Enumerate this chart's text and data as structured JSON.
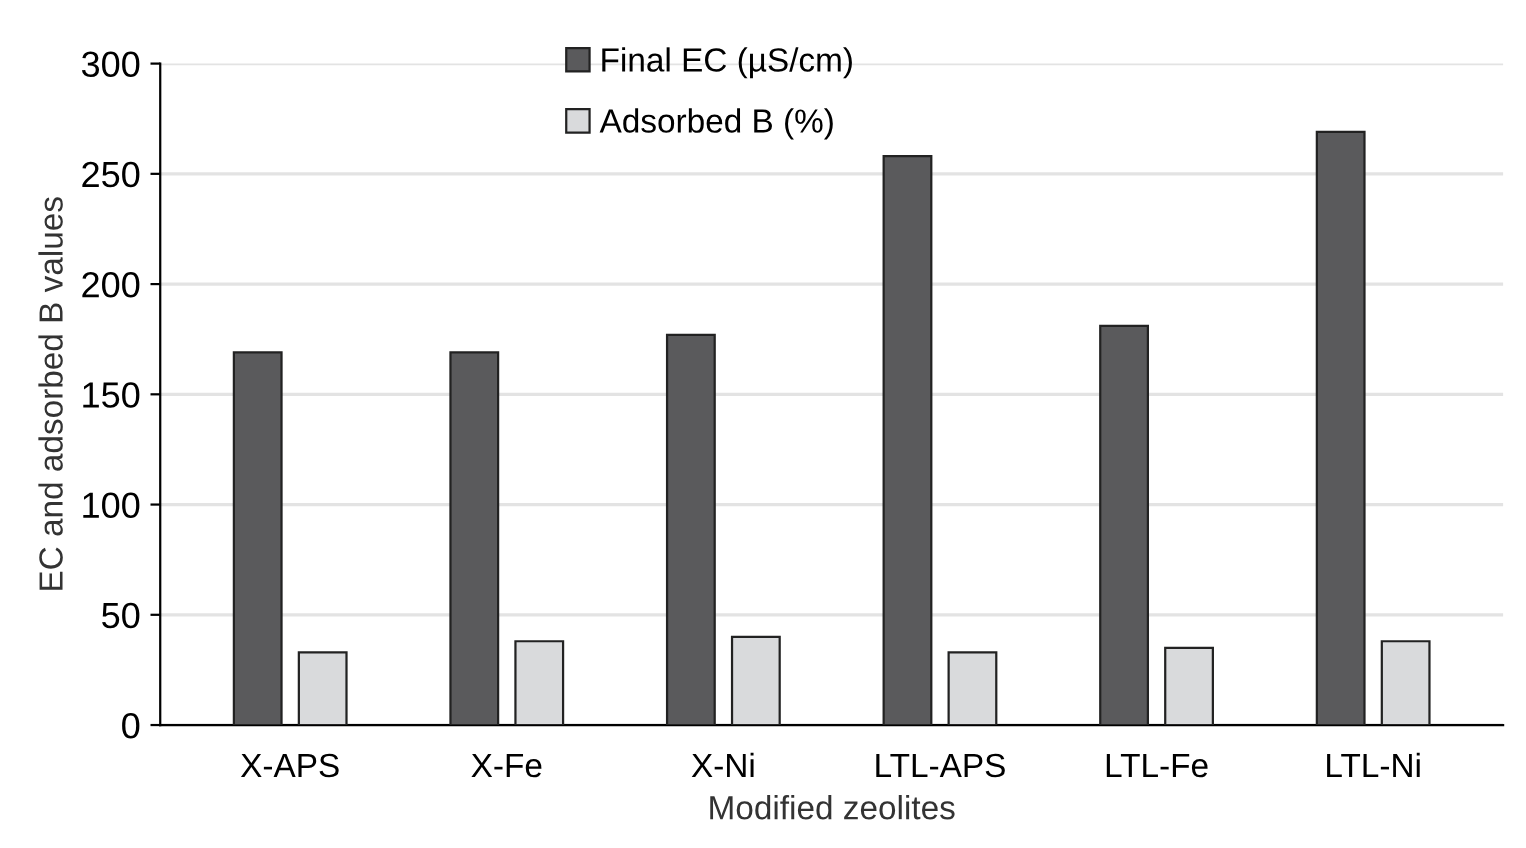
{
  "chart_data": {
    "type": "bar",
    "xlabel": "Modified zeolites",
    "ylabel": "EC and adsorbed B values",
    "categories": [
      "X-APS",
      "X-Fe",
      "X-Ni",
      "LTL-APS",
      "LTL-Fe",
      "LTL-Ni"
    ],
    "series": [
      {
        "name": "Final EC (µS/cm)",
        "color": "#5a5a5c",
        "values": [
          169,
          169,
          177,
          258,
          181,
          269
        ]
      },
      {
        "name": "Adsorbed B (%)",
        "color": "#d9dadc",
        "values": [
          33,
          38,
          40,
          33,
          35,
          38
        ]
      }
    ],
    "ylim": [
      0,
      300
    ],
    "yticks": [
      0,
      50,
      100,
      150,
      200,
      250,
      300
    ],
    "grid": "y",
    "legend": "top"
  }
}
